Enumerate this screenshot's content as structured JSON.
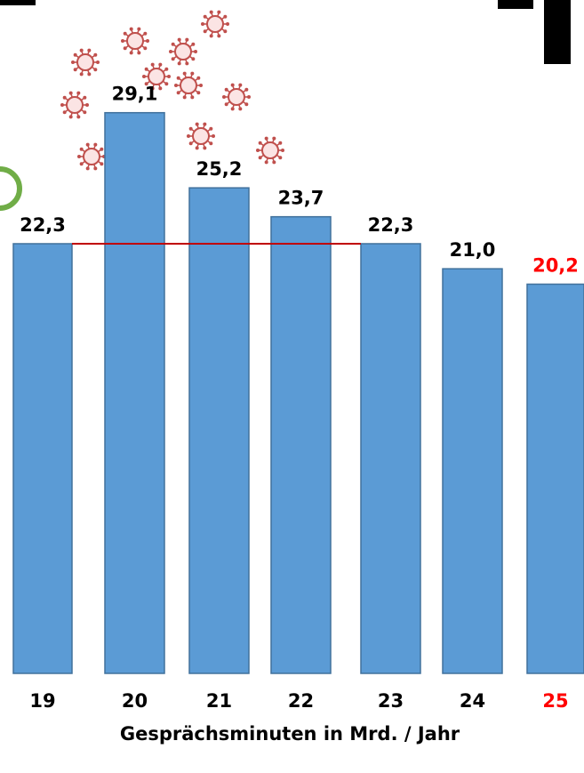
{
  "chart_data": {
    "type": "bar",
    "categories": [
      "19",
      "20",
      "21",
      "22",
      "23",
      "24",
      "25"
    ],
    "values": [
      22.3,
      29.1,
      25.2,
      23.7,
      22.3,
      21.0,
      20.2
    ],
    "value_labels": [
      "22,3",
      "29,1",
      "25,2",
      "23,7",
      "22,3",
      "21,0",
      "20,2"
    ],
    "xlabel": "Gesprächsminuten in Mrd. / Jahr",
    "ylabel": "",
    "reference_line_value": 22.3,
    "grid": false,
    "legend": "none"
  },
  "colors": {
    "bar_fill": "#5b9bd5",
    "bar_stroke": "#41719c",
    "label_text": "#000000",
    "highlight_text": "#ff0000",
    "reference_line": "#c00000",
    "virus": "#c0504d",
    "green_accent": "#70ad47"
  },
  "highlight_category": "25",
  "decoration": {
    "icon": "virus-icon",
    "count": 10
  }
}
